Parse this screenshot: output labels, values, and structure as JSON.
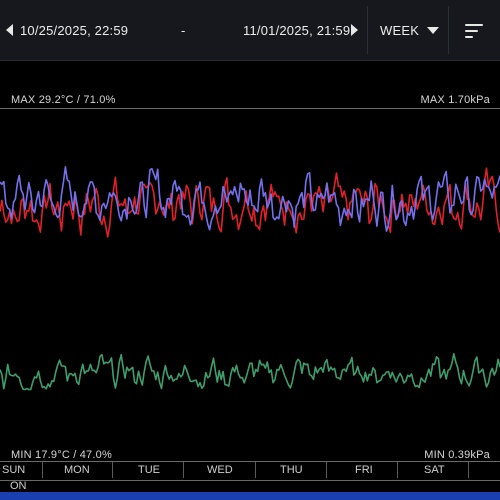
{
  "toolbar": {
    "start_datetime": "10/25/2025, 22:59",
    "separator": "-",
    "end_datetime": "11/01/2025, 21:59",
    "period": "WEEK",
    "icons": [
      "prev-arrow-icon",
      "next-arrow-icon",
      "chevron-down-icon",
      "sort-menu-icon"
    ]
  },
  "chart": {
    "max_left": "MAX 29.2°C / 71.0%",
    "max_right": "MAX 1.70kPa",
    "min_left": "MIN 17.9°C / 47.0%",
    "min_right": "MIN 0.39kPa",
    "days": [
      "SUN",
      "MON",
      "TUE",
      "WED",
      "THU",
      "FRI",
      "SAT"
    ],
    "status": "ON",
    "colors": {
      "temperature": "#e0202a",
      "humidity": "#7570ee",
      "vpd": "#3e9e6c",
      "bottom_bar": "#1a3fb0"
    }
  },
  "chart_data": {
    "type": "line",
    "x": [
      "SUN",
      "MON",
      "TUE",
      "WED",
      "THU",
      "FRI",
      "SAT"
    ],
    "series": [
      {
        "values": [
          22.0,
          23.5,
          24.1,
          25.0,
          23.0,
          24.4,
          24.8
        ]
      },
      {
        "values": [
          60.0,
          61.5,
          63.0,
          62.0,
          58.5,
          61.0,
          64.0
        ]
      },
      {
        "values": [
          0.9,
          1.05,
          1.0,
          0.95,
          1.1,
          0.92,
          1.15
        ]
      }
    ],
    "legend": "none",
    "grid": false
  }
}
